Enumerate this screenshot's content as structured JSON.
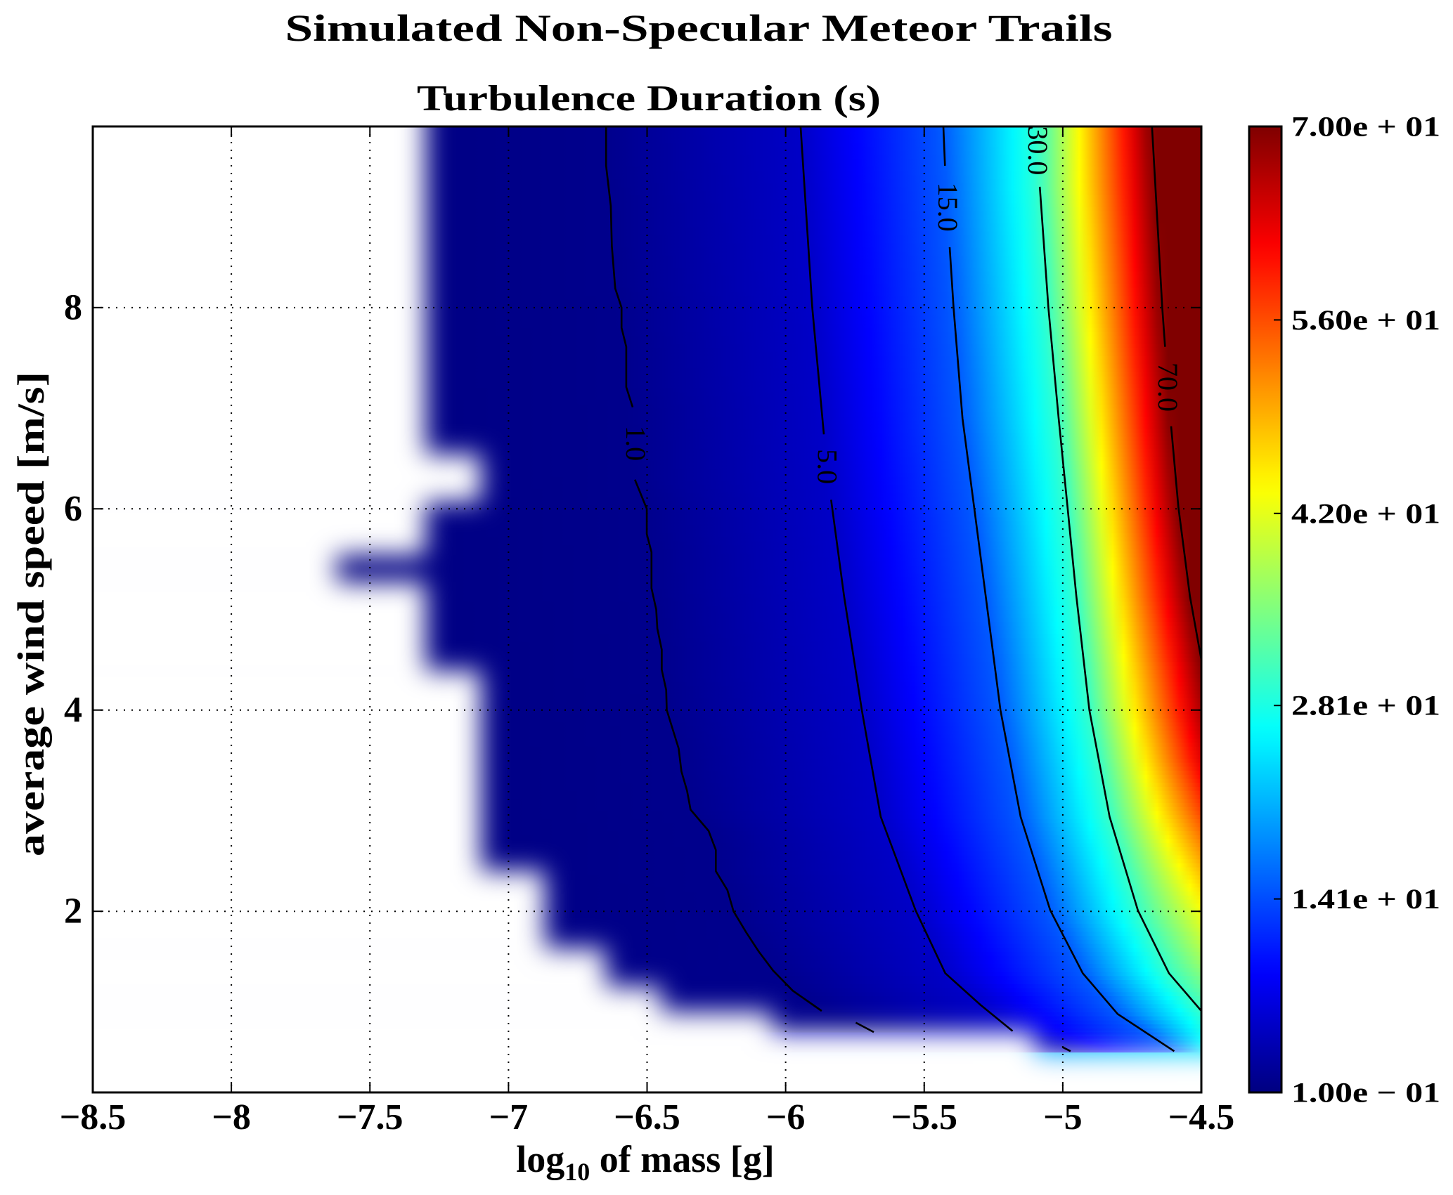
{
  "figure": {
    "suptitle": "Simulated Non-Specular Meteor Trails"
  },
  "chart_data": {
    "type": "heatmap",
    "title": "Turbulence Duration (s)",
    "xlabel": {
      "base": "log",
      "sub": "10",
      "rest": " of mass [g]"
    },
    "ylabel": "average wind speed [m/s]",
    "xlim": [
      -8.5,
      -4.5
    ],
    "ylim": [
      0.2,
      9.8
    ],
    "xticks": [
      -8.5,
      -8,
      -7.5,
      -7,
      -6.5,
      -6,
      -5.5,
      -5,
      -4.5
    ],
    "xtick_labels": [
      "−8.5",
      "−8",
      "−7.5",
      "−7",
      "−6.5",
      "−6",
      "−5.5",
      "−5",
      "−4.5"
    ],
    "yticks": [
      2,
      4,
      6,
      8
    ],
    "ytick_labels": [
      "2",
      "4",
      "6",
      "8"
    ],
    "grid": true,
    "colormap": "jet",
    "clim": [
      0.1,
      70
    ],
    "colorbar": {
      "ticks": [
        70,
        56,
        42,
        28.1,
        14.1,
        0.1
      ],
      "tick_labels": [
        "7.00e + 01",
        "5.60e + 01",
        "4.20e + 01",
        "2.81e + 01",
        "1.41e + 01",
        "1.00e − 01"
      ]
    },
    "contours": [
      {
        "level": 1.0,
        "label": "1.0",
        "label_pos": [
          -6.54,
          6.65
        ],
        "segments": [
          [
            [
              -6.648,
              9.8
            ],
            [
              -6.648,
              9.41
            ],
            [
              -6.631,
              9.01
            ],
            [
              -6.627,
              8.61
            ],
            [
              -6.615,
              8.19
            ],
            [
              -6.592,
              8.0
            ],
            [
              -6.592,
              7.8
            ],
            [
              -6.575,
              7.61
            ],
            [
              -6.575,
              7.21
            ],
            [
              -6.552,
              7.01
            ]
          ],
          [
            [
              -6.544,
              6.29
            ],
            [
              -6.501,
              6.0
            ],
            [
              -6.501,
              5.75
            ],
            [
              -6.484,
              5.57
            ],
            [
              -6.484,
              5.21
            ],
            [
              -6.467,
              5.0
            ],
            [
              -6.463,
              4.81
            ],
            [
              -6.447,
              4.6
            ],
            [
              -6.447,
              4.4
            ],
            [
              -6.431,
              4.2
            ],
            [
              -6.429,
              4.0
            ],
            [
              -6.386,
              3.62
            ],
            [
              -6.376,
              3.39
            ],
            [
              -6.356,
              3.2
            ],
            [
              -6.343,
              3.01
            ],
            [
              -6.278,
              2.8
            ],
            [
              -6.252,
              2.61
            ],
            [
              -6.252,
              2.4
            ],
            [
              -6.21,
              2.21
            ],
            [
              -6.188,
              2.0
            ],
            [
              -6.142,
              1.79
            ],
            [
              -6.097,
              1.6
            ],
            [
              -6.045,
              1.41
            ],
            [
              -5.974,
              1.21
            ],
            [
              -5.87,
              1.01
            ]
          ],
          [
            [
              -5.747,
              0.894
            ],
            [
              -5.682,
              0.8
            ]
          ]
        ]
      },
      {
        "level": 5.0,
        "label": "5.0",
        "label_pos": [
          -5.85,
          6.42
        ],
        "segments": [
          [
            [
              -5.946,
              9.8
            ],
            [
              -5.904,
              8.0
            ],
            [
              -5.862,
              6.74
            ]
          ],
          [
            [
              -5.836,
              6.09
            ],
            [
              -5.789,
              5.13
            ],
            [
              -5.725,
              4.0
            ],
            [
              -5.657,
              2.94
            ],
            [
              -5.531,
              2.01
            ],
            [
              -5.424,
              1.385
            ],
            [
              -5.297,
              1.07
            ],
            [
              -5.181,
              0.81
            ]
          ],
          [
            [
              -5.001,
              0.65
            ],
            [
              -4.972,
              0.61
            ]
          ]
        ]
      },
      {
        "level": 15.0,
        "label": "15.0",
        "label_pos": [
          -5.415,
          9.0
        ],
        "segments": [
          [
            [
              -5.431,
              9.8
            ],
            [
              -5.425,
              9.41
            ]
          ],
          [
            [
              -5.408,
              8.6
            ],
            [
              -5.394,
              8.0
            ],
            [
              -5.362,
              6.9
            ],
            [
              -5.32,
              6.02
            ],
            [
              -5.278,
              5.13
            ],
            [
              -5.225,
              4.0
            ],
            [
              -5.152,
              2.94
            ],
            [
              -5.045,
              2.01
            ],
            [
              -4.928,
              1.385
            ],
            [
              -4.802,
              0.98
            ],
            [
              -4.598,
              0.61
            ]
          ]
        ]
      },
      {
        "level": 30.0,
        "label": "30.0",
        "label_pos": [
          -5.09,
          9.56
        ],
        "segments": [
          [
            [
              -5.083,
              9.2
            ],
            [
              -5.052,
              8.0
            ],
            [
              -5.015,
              6.9
            ],
            [
              -4.983,
              6.02
            ],
            [
              -4.951,
              5.13
            ],
            [
              -4.904,
              4.0
            ],
            [
              -4.831,
              2.94
            ],
            [
              -4.729,
              2.01
            ],
            [
              -4.617,
              1.385
            ],
            [
              -4.5,
              1.01
            ]
          ]
        ]
      },
      {
        "level": 70.0,
        "label": "70.0",
        "label_pos": [
          -4.62,
          7.21
        ],
        "segments": [
          [
            [
              -4.678,
              9.8
            ],
            [
              -4.641,
              8.0
            ],
            [
              -4.631,
              7.61
            ]
          ],
          [
            [
              -4.609,
              6.82
            ],
            [
              -4.583,
              6.02
            ],
            [
              -4.541,
              5.13
            ],
            [
              -4.5,
              4.5
            ]
          ]
        ]
      }
    ],
    "right_edge_values": [
      [
        0.2,
        22
      ],
      [
        0.56,
        24
      ],
      [
        1.01,
        30
      ],
      [
        1.5,
        37
      ],
      [
        2.0,
        43
      ],
      [
        2.5,
        50
      ],
      [
        3.0,
        57
      ],
      [
        3.5,
        63
      ],
      [
        4.0,
        67
      ],
      [
        4.5,
        70
      ],
      [
        9.8,
        70
      ]
    ],
    "valid_region": [
      {
        "y": [
          0.2,
          0.58
        ],
        "xmin": null
      },
      {
        "y": [
          0.58,
          0.8
        ],
        "xmin": -5.1
      },
      {
        "y": [
          0.8,
          1.0
        ],
        "xmin": -6.05
      },
      {
        "y": [
          1.0,
          1.25
        ],
        "xmin": -6.45
      },
      {
        "y": [
          1.25,
          1.63
        ],
        "xmin": -6.65
      },
      {
        "y": [
          1.63,
          2.4
        ],
        "xmin": -6.87
      },
      {
        "y": [
          2.4,
          4.39
        ],
        "xmin": -7.1
      },
      {
        "y": [
          4.39,
          5.27
        ],
        "xmin": -7.3
      },
      {
        "y": [
          5.27,
          5.54
        ],
        "xmin": -7.62
      },
      {
        "y": [
          5.54,
          6.07
        ],
        "xmin": -7.3
      },
      {
        "y": [
          6.07,
          6.54
        ],
        "xmin": -7.1
      },
      {
        "y": [
          6.54,
          9.8
        ],
        "xmin": -7.3
      }
    ]
  }
}
